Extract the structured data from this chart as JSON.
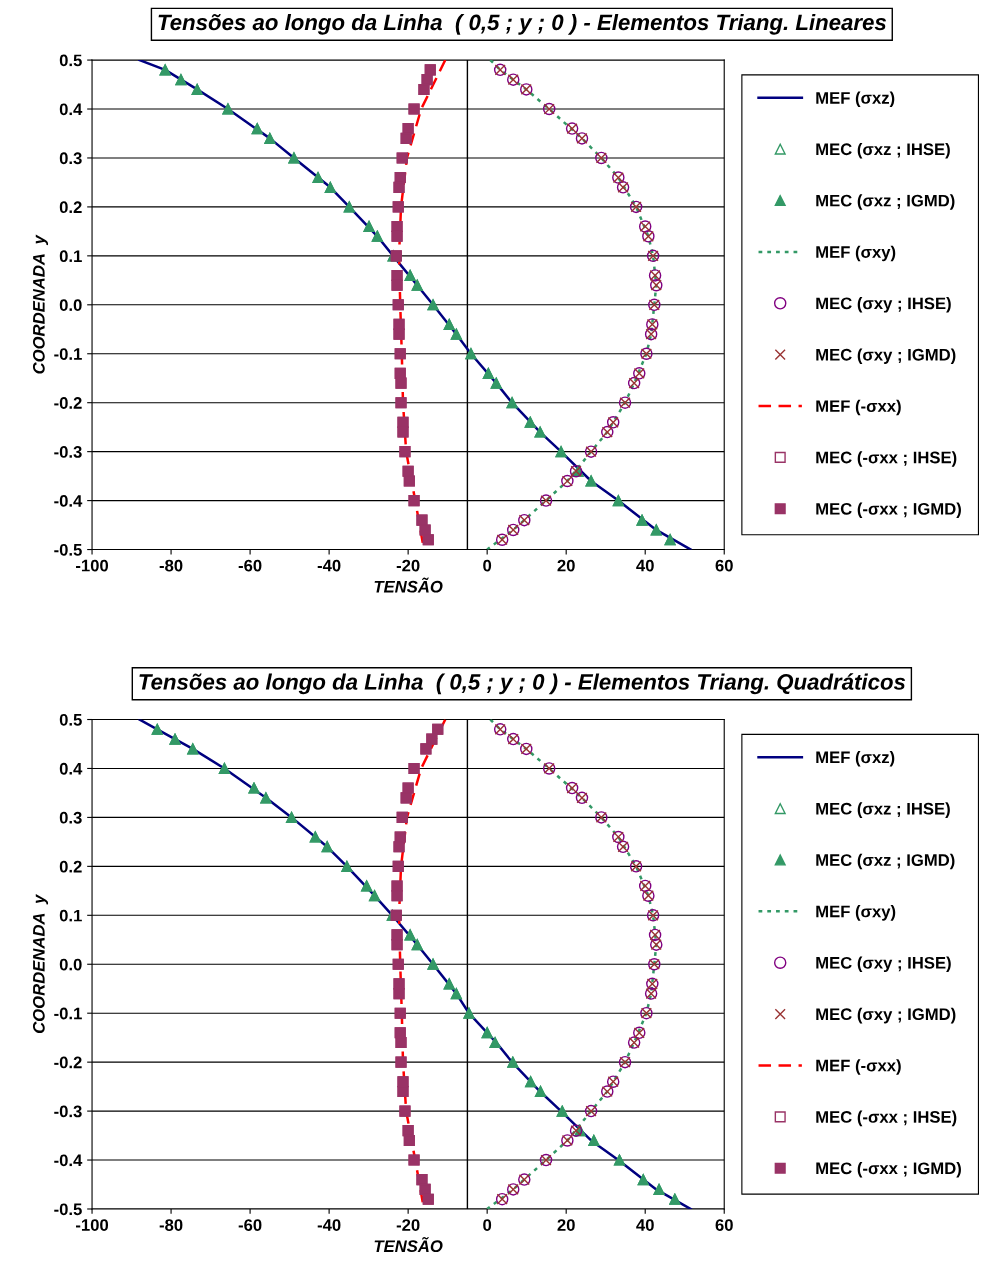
{
  "chart_data": [
    {
      "type": "scatter",
      "title": "Tensões ao longo da Linha  ( 0,5 ; y ; 0 ) - Elementos Triang. Lineares",
      "xlabel": "TENSÃO",
      "ylabel": "COORDENADA  y",
      "xlim": [
        -100,
        60
      ],
      "xticks": [
        -100,
        -80,
        -60,
        -40,
        -20,
        0,
        20,
        40,
        60
      ],
      "ylim": [
        -0.5,
        0.5
      ],
      "yticks": [
        -0.5,
        -0.4,
        -0.3,
        -0.2,
        -0.1,
        {
          "value": 0,
          "label": "0.0"
        },
        0.1,
        0.2,
        0.3,
        0.4,
        0.5
      ],
      "grid": "y",
      "legend": "right",
      "ref_lines": [
        {
          "axis": "x",
          "value": -5,
          "color": "#000000"
        }
      ],
      "series": [
        {
          "name": "MEF (σxz)",
          "type": "line",
          "color": "#000080",
          "line_style": "solid",
          "marker": "none",
          "x": [
            -88,
            -81.5,
            -73.4,
            -65.6,
            -55,
            -48.9,
            -39.7,
            -34.9,
            -27.8,
            -23.8,
            -17.7,
            -13.7,
            -7.8,
            -4.1,
            2.3,
            6.3,
            13.4,
            18.7,
            26.3,
            33.2,
            42.8,
            51.5
          ],
          "values": [
            0.5,
            0.48,
            0.44,
            0.4,
            0.34,
            0.3,
            0.24,
            0.2,
            0.14,
            0.1,
            0.04,
            0,
            -0.06,
            -0.1,
            -0.16,
            -0.2,
            -0.26,
            -0.3,
            -0.36,
            -0.4,
            -0.46,
            -0.5
          ]
        },
        {
          "name": "MEC (σxz ; IHSE)",
          "color": "#339966",
          "marker": "triangle",
          "x": [
            -81.5,
            -77.5,
            -73.4,
            -65.6,
            -58.2,
            -55,
            -48.9,
            -42.8,
            -39.7,
            -34.9,
            -29.9,
            -27.8,
            -23.8,
            -19.5,
            -17.7,
            -13.7,
            -9.6,
            -7.8,
            -4.1,
            0.3,
            2.3,
            6.3,
            10.9,
            13.4,
            18.7,
            23,
            26.3,
            33.2,
            39.2,
            42.8,
            46.3
          ],
          "values": [
            0.48,
            0.46,
            0.44,
            0.4,
            0.36,
            0.34,
            0.3,
            0.26,
            0.24,
            0.2,
            0.16,
            0.14,
            0.1,
            0.06,
            0.04,
            0,
            -0.04,
            -0.06,
            -0.1,
            -0.14,
            -0.16,
            -0.2,
            -0.24,
            -0.26,
            -0.3,
            -0.34,
            -0.36,
            -0.4,
            -0.44,
            -0.46,
            -0.48
          ]
        },
        {
          "name": "MEC (σxz ; IGMD)",
          "color": "#339966",
          "marker": "triangle",
          "x": [
            -81.5,
            -77.5,
            -73.4,
            -65.6,
            -58.2,
            -55,
            -48.9,
            -42.8,
            -39.7,
            -34.9,
            -29.9,
            -27.8,
            -23.8,
            -19.5,
            -17.7,
            -13.7,
            -9.6,
            -7.8,
            -4.1,
            0.3,
            2.3,
            6.3,
            10.9,
            13.4,
            18.7,
            23,
            26.3,
            33.2,
            39.2,
            42.8,
            46.3
          ],
          "values": [
            0.48,
            0.46,
            0.44,
            0.4,
            0.36,
            0.34,
            0.3,
            0.26,
            0.24,
            0.2,
            0.16,
            0.14,
            0.1,
            0.06,
            0.04,
            0,
            -0.04,
            -0.06,
            -0.1,
            -0.14,
            -0.16,
            -0.2,
            -0.24,
            -0.26,
            -0.3,
            -0.34,
            -0.36,
            -0.4,
            -0.44,
            -0.46,
            -0.48
          ]
        },
        {
          "name": "MEF (σxy)",
          "type": "line",
          "color": "#339966",
          "line_style": "dotted",
          "marker": "none",
          "x": [
            0.8,
            3.3,
            9.9,
            15.7,
            24,
            28.9,
            33.2,
            37.7,
            40.8,
            42,
            42.8,
            42.3,
            41.5,
            40.3,
            37.2,
            34.9,
            30.4,
            26.3,
            20.3,
            14.9,
            6.6,
            0
          ],
          "values": [
            0.5,
            0.48,
            0.44,
            0.4,
            0.34,
            0.3,
            0.26,
            0.2,
            0.14,
            0.1,
            0.04,
            0,
            -0.06,
            -0.1,
            -0.16,
            -0.2,
            -0.26,
            -0.3,
            -0.36,
            -0.4,
            -0.46,
            -0.5
          ]
        },
        {
          "name": "MEC (σxy ; IHSE)",
          "color": "#800080",
          "marker": "circle",
          "x": [
            3.3,
            6.6,
            9.9,
            15.7,
            21.5,
            24,
            28.9,
            33.2,
            34.4,
            37.7,
            40,
            40.8,
            42,
            42.5,
            42.8,
            42.3,
            41.8,
            41.5,
            40.3,
            38.5,
            37.2,
            34.9,
            31.9,
            30.4,
            26.3,
            22.5,
            20.3,
            14.9,
            9.4,
            6.6,
            3.8
          ],
          "values": [
            0.48,
            0.46,
            0.44,
            0.4,
            0.36,
            0.34,
            0.3,
            0.26,
            0.24,
            0.2,
            0.16,
            0.14,
            0.1,
            0.06,
            0.04,
            0,
            -0.04,
            -0.06,
            -0.1,
            -0.14,
            -0.16,
            -0.2,
            -0.24,
            -0.26,
            -0.3,
            -0.34,
            -0.36,
            -0.4,
            -0.44,
            -0.46,
            -0.48
          ]
        },
        {
          "name": "MEC (σxy ; IGMD)",
          "color": "#993333",
          "marker": "cross",
          "x": [
            3.3,
            6.6,
            9.9,
            15.7,
            21.5,
            24,
            28.9,
            33.2,
            34.4,
            37.7,
            40,
            40.8,
            42,
            42.5,
            42.8,
            42.3,
            41.8,
            41.5,
            40.3,
            38.5,
            37.2,
            34.9,
            31.9,
            30.4,
            26.3,
            22.5,
            20.3,
            14.9,
            9.4,
            6.6,
            3.8
          ],
          "values": [
            0.48,
            0.46,
            0.44,
            0.4,
            0.36,
            0.34,
            0.3,
            0.26,
            0.24,
            0.2,
            0.16,
            0.14,
            0.1,
            0.06,
            0.04,
            0,
            -0.04,
            -0.06,
            -0.1,
            -0.14,
            -0.16,
            -0.2,
            -0.24,
            -0.26,
            -0.3,
            -0.34,
            -0.36,
            -0.4,
            -0.44,
            -0.46,
            -0.48
          ]
        },
        {
          "name": "MEF (-σxx)",
          "type": "line",
          "color": "#ff0000",
          "line_style": "dashed",
          "marker": "none",
          "x": [
            -10.6,
            -16.7,
            -20.3,
            -21.8,
            -22.3,
            -22,
            -21.6,
            -21.3,
            -20.5,
            -18.2,
            -16
          ],
          "values": [
            0.5,
            0.4,
            0.3,
            0.2,
            0.1,
            0,
            -0.1,
            -0.2,
            -0.3,
            -0.4,
            -0.5
          ]
        },
        {
          "name": "MEC (-σxx ; IHSE)",
          "color": "#993366",
          "marker": "square",
          "x": [
            -14.4,
            -15.2,
            -16,
            -18.5,
            -20,
            -20.5,
            -21.5,
            -22,
            -22.3,
            -22.5,
            -22.8,
            -22.8,
            -23,
            -22.8,
            -22.8,
            -22.5,
            -22.3,
            -22.3,
            -22,
            -22,
            -21.8,
            -21.8,
            -21.3,
            -21.3,
            -20.8,
            -20,
            -19.7,
            -18.5,
            -16.5,
            -15.7,
            -14.9
          ],
          "values": [
            0.48,
            0.46,
            0.44,
            0.4,
            0.36,
            0.34,
            0.3,
            0.26,
            0.24,
            0.2,
            0.16,
            0.14,
            0.1,
            0.06,
            0.04,
            0,
            -0.04,
            -0.06,
            -0.1,
            -0.14,
            -0.16,
            -0.2,
            -0.24,
            -0.26,
            -0.3,
            -0.34,
            -0.36,
            -0.4,
            -0.44,
            -0.46,
            -0.48
          ]
        },
        {
          "name": "MEC (-σxx ; IGMD)",
          "color": "#993366",
          "marker": "square",
          "x": [
            -14.4,
            -15.2,
            -16,
            -18.5,
            -20,
            -20.5,
            -21.5,
            -22,
            -22.3,
            -22.5,
            -22.8,
            -22.8,
            -23,
            -22.8,
            -22.8,
            -22.5,
            -22.3,
            -22.3,
            -22,
            -22,
            -21.8,
            -21.8,
            -21.3,
            -21.3,
            -20.8,
            -20,
            -19.7,
            -18.5,
            -16.5,
            -15.7,
            -14.9
          ],
          "values": [
            0.48,
            0.46,
            0.44,
            0.4,
            0.36,
            0.34,
            0.3,
            0.26,
            0.24,
            0.2,
            0.16,
            0.14,
            0.1,
            0.06,
            0.04,
            0,
            -0.04,
            -0.06,
            -0.1,
            -0.14,
            -0.16,
            -0.2,
            -0.24,
            -0.26,
            -0.3,
            -0.34,
            -0.36,
            -0.4,
            -0.44,
            -0.46,
            -0.48
          ]
        }
      ]
    },
    {
      "type": "scatter",
      "title": "Tensões ao longo da Linha  ( 0,5 ; y ; 0 ) - Elementos Triang. Quadráticos",
      "xlabel": "TENSÃO",
      "ylabel": "COORDENADA  y",
      "xlim": [
        -100,
        60
      ],
      "xticks": [
        -100,
        -80,
        -60,
        -40,
        -20,
        0,
        20,
        40,
        60
      ],
      "ylim": [
        -0.5,
        0.5
      ],
      "yticks": [
        -0.5,
        -0.4,
        -0.3,
        -0.2,
        -0.1,
        {
          "value": 0,
          "label": "0.0"
        },
        0.1,
        0.2,
        0.3,
        0.4,
        0.5
      ],
      "grid": "y",
      "legend": "right",
      "ref_lines": [
        {
          "axis": "x",
          "value": -5,
          "color": "#000000"
        }
      ],
      "series": [
        {
          "name": "MEF (σxz)",
          "type": "line",
          "color": "#000080",
          "line_style": "solid",
          "marker": "none",
          "x": [
            -88,
            -83.5,
            -74.5,
            -66.5,
            -56,
            -49.5,
            -40.5,
            -35.5,
            -28.5,
            -24,
            -17.7,
            -13.7,
            -7.8,
            -4.6,
            2.3,
            6.3,
            13.4,
            18.7,
            26.3,
            33.2,
            42.8,
            51.5
          ],
          "values": [
            0.5,
            0.48,
            0.44,
            0.4,
            0.34,
            0.3,
            0.24,
            0.2,
            0.14,
            0.1,
            0.04,
            0,
            -0.06,
            -0.1,
            -0.16,
            -0.2,
            -0.26,
            -0.3,
            -0.36,
            -0.4,
            -0.46,
            -0.5
          ]
        },
        {
          "name": "MEC (σxz ; IHSE)",
          "color": "#339966",
          "marker": "triangle",
          "x": [
            -83.5,
            -79,
            -74.5,
            -66.5,
            -59,
            -56,
            -49.5,
            -43.5,
            -40.5,
            -35.5,
            -30.5,
            -28.5,
            -24,
            -19.5,
            -17.7,
            -13.7,
            -9.6,
            -7.8,
            -4.6,
            0,
            2,
            6.5,
            11,
            13.5,
            19,
            23.5,
            27,
            33.5,
            39.5,
            43.5,
            47.5
          ],
          "values": [
            0.48,
            0.46,
            0.44,
            0.4,
            0.36,
            0.34,
            0.3,
            0.26,
            0.24,
            0.2,
            0.16,
            0.14,
            0.1,
            0.06,
            0.04,
            0,
            -0.04,
            -0.06,
            -0.1,
            -0.14,
            -0.16,
            -0.2,
            -0.24,
            -0.26,
            -0.3,
            -0.34,
            -0.36,
            -0.4,
            -0.44,
            -0.46,
            -0.48
          ]
        },
        {
          "name": "MEC (σxz ; IGMD)",
          "color": "#339966",
          "marker": "triangle",
          "x": [
            -83.5,
            -79,
            -74.5,
            -66.5,
            -59,
            -56,
            -49.5,
            -43.5,
            -40.5,
            -35.5,
            -30.5,
            -28.5,
            -24,
            -19.5,
            -17.7,
            -13.7,
            -9.6,
            -7.8,
            -4.6,
            0,
            2,
            6.5,
            11,
            13.5,
            19,
            23.5,
            27,
            33.5,
            39.5,
            43.5,
            47.5
          ],
          "values": [
            0.48,
            0.46,
            0.44,
            0.4,
            0.36,
            0.34,
            0.3,
            0.26,
            0.24,
            0.2,
            0.16,
            0.14,
            0.1,
            0.06,
            0.04,
            0,
            -0.04,
            -0.06,
            -0.1,
            -0.14,
            -0.16,
            -0.2,
            -0.24,
            -0.26,
            -0.3,
            -0.34,
            -0.36,
            -0.4,
            -0.44,
            -0.46,
            -0.48
          ]
        },
        {
          "name": "MEF (σxy)",
          "type": "line",
          "color": "#339966",
          "line_style": "dotted",
          "marker": "none",
          "x": [
            0.8,
            3.3,
            9.9,
            15.7,
            24,
            28.9,
            33.2,
            37.7,
            40.8,
            42,
            42.8,
            42.3,
            41.5,
            40.3,
            37.2,
            34.9,
            30.4,
            26.3,
            20.3,
            14.9,
            6.6,
            0
          ],
          "values": [
            0.5,
            0.48,
            0.44,
            0.4,
            0.34,
            0.3,
            0.26,
            0.2,
            0.14,
            0.1,
            0.04,
            0,
            -0.06,
            -0.1,
            -0.16,
            -0.2,
            -0.26,
            -0.3,
            -0.36,
            -0.4,
            -0.46,
            -0.5
          ]
        },
        {
          "name": "MEC (σxy ; IHSE)",
          "color": "#800080",
          "marker": "circle",
          "x": [
            3.3,
            6.6,
            9.9,
            15.7,
            21.5,
            24,
            28.9,
            33.2,
            34.4,
            37.7,
            40,
            40.8,
            42,
            42.5,
            42.8,
            42.3,
            41.8,
            41.5,
            40.3,
            38.5,
            37.2,
            34.9,
            31.9,
            30.4,
            26.3,
            22.5,
            20.3,
            14.9,
            9.4,
            6.6,
            3.8
          ],
          "values": [
            0.48,
            0.46,
            0.44,
            0.4,
            0.36,
            0.34,
            0.3,
            0.26,
            0.24,
            0.2,
            0.16,
            0.14,
            0.1,
            0.06,
            0.04,
            0,
            -0.04,
            -0.06,
            -0.1,
            -0.14,
            -0.16,
            -0.2,
            -0.24,
            -0.26,
            -0.3,
            -0.34,
            -0.36,
            -0.4,
            -0.44,
            -0.46,
            -0.48
          ]
        },
        {
          "name": "MEC (σxy ; IGMD)",
          "color": "#993333",
          "marker": "cross",
          "x": [
            3.3,
            6.6,
            9.9,
            15.7,
            21.5,
            24,
            28.9,
            33.2,
            34.4,
            37.7,
            40,
            40.8,
            42,
            42.5,
            42.8,
            42.3,
            41.8,
            41.5,
            40.3,
            38.5,
            37.2,
            34.9,
            31.9,
            30.4,
            26.3,
            22.5,
            20.3,
            14.9,
            9.4,
            6.6,
            3.8
          ],
          "values": [
            0.48,
            0.46,
            0.44,
            0.4,
            0.36,
            0.34,
            0.3,
            0.26,
            0.24,
            0.2,
            0.16,
            0.14,
            0.1,
            0.06,
            0.04,
            0,
            -0.04,
            -0.06,
            -0.1,
            -0.14,
            -0.16,
            -0.2,
            -0.24,
            -0.26,
            -0.3,
            -0.34,
            -0.36,
            -0.4,
            -0.44,
            -0.46,
            -0.48
          ]
        },
        {
          "name": "MEF (-σxx)",
          "type": "line",
          "color": "#ff0000",
          "line_style": "dashed",
          "marker": "none",
          "x": [
            -10.6,
            -16.7,
            -20.3,
            -21.8,
            -22.3,
            -22,
            -21.6,
            -21.3,
            -20.5,
            -18.2,
            -16
          ],
          "values": [
            0.5,
            0.4,
            0.3,
            0.2,
            0.1,
            0,
            -0.1,
            -0.2,
            -0.3,
            -0.4,
            -0.5
          ]
        },
        {
          "name": "MEC (-σxx ; IHSE)",
          "color": "#993366",
          "marker": "square",
          "x": [
            -12.5,
            -14,
            -15.5,
            -18.5,
            -20,
            -20.5,
            -21.5,
            -22,
            -22.3,
            -22.5,
            -22.8,
            -22.8,
            -23,
            -22.8,
            -22.8,
            -22.5,
            -22.3,
            -22.3,
            -22,
            -22,
            -21.8,
            -21.8,
            -21.3,
            -21.3,
            -20.8,
            -20,
            -19.7,
            -18.5,
            -16.5,
            -15.7,
            -14.9
          ],
          "values": [
            0.48,
            0.46,
            0.44,
            0.4,
            0.36,
            0.34,
            0.3,
            0.26,
            0.24,
            0.2,
            0.16,
            0.14,
            0.1,
            0.06,
            0.04,
            0,
            -0.04,
            -0.06,
            -0.1,
            -0.14,
            -0.16,
            -0.2,
            -0.24,
            -0.26,
            -0.3,
            -0.34,
            -0.36,
            -0.4,
            -0.44,
            -0.46,
            -0.48
          ]
        },
        {
          "name": "MEC (-σxx ; IGMD)",
          "color": "#993366",
          "marker": "square",
          "x": [
            -12.5,
            -14,
            -15.5,
            -18.5,
            -20,
            -20.5,
            -21.5,
            -22,
            -22.3,
            -22.5,
            -22.8,
            -22.8,
            -23,
            -22.8,
            -22.8,
            -22.5,
            -22.3,
            -22.3,
            -22,
            -22,
            -21.8,
            -21.8,
            -21.3,
            -21.3,
            -20.8,
            -20,
            -19.7,
            -18.5,
            -16.5,
            -15.7,
            -14.9
          ],
          "values": [
            0.48,
            0.46,
            0.44,
            0.4,
            0.36,
            0.34,
            0.3,
            0.26,
            0.24,
            0.2,
            0.16,
            0.14,
            0.1,
            0.06,
            0.04,
            0,
            -0.04,
            -0.06,
            -0.1,
            -0.14,
            -0.16,
            -0.2,
            -0.24,
            -0.26,
            -0.3,
            -0.34,
            -0.36,
            -0.4,
            -0.44,
            -0.46,
            -0.48
          ]
        }
      ]
    }
  ]
}
